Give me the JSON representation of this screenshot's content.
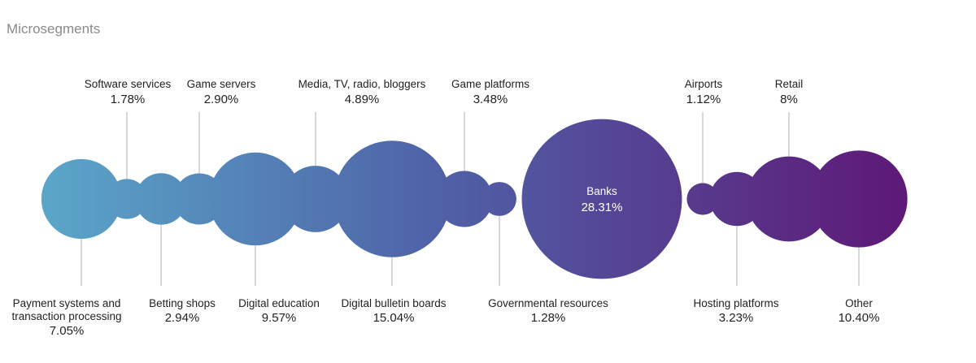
{
  "chart_data": {
    "type": "bubble",
    "title": "Microsegments",
    "colors": {
      "start": "#5aa5c8",
      "mid": "#4f63a8",
      "end": "#5e1a78"
    },
    "series": [
      {
        "label": [
          "Payment systems and",
          "transaction processing"
        ],
        "value_text": "7.05%",
        "value": 7.05
      },
      {
        "label": [
          "Software services"
        ],
        "value_text": "1.78%",
        "value": 1.78
      },
      {
        "label": [
          "Betting shops"
        ],
        "value_text": "2.94%",
        "value": 2.94
      },
      {
        "label": [
          "Game servers"
        ],
        "value_text": "2.90%",
        "value": 2.9
      },
      {
        "label": [
          "Digital education"
        ],
        "value_text": "9.57%",
        "value": 9.57
      },
      {
        "label": [
          "Media, TV, radio, bloggers"
        ],
        "value_text": "4.89%",
        "value": 4.89
      },
      {
        "label": [
          "Digital bulletin boards"
        ],
        "value_text": "15.04%",
        "value": 15.04
      },
      {
        "label": [
          "Game platforms"
        ],
        "value_text": "3.48%",
        "value": 3.48
      },
      {
        "label": [
          "Governmental resources"
        ],
        "value_text": "1.28%",
        "value": 1.28
      },
      {
        "label": [
          "Banks"
        ],
        "value_text": "28.31%",
        "value": 28.31
      },
      {
        "label": [
          "Airports"
        ],
        "value_text": "1.12%",
        "value": 1.12
      },
      {
        "label": [
          "Hosting platforms"
        ],
        "value_text": "3.23%",
        "value": 3.23
      },
      {
        "label": [
          "Retail"
        ],
        "value_text": "8%",
        "value": 8
      },
      {
        "label": [
          "Other"
        ],
        "value_text": "10.40%",
        "value": 10.4
      }
    ]
  }
}
